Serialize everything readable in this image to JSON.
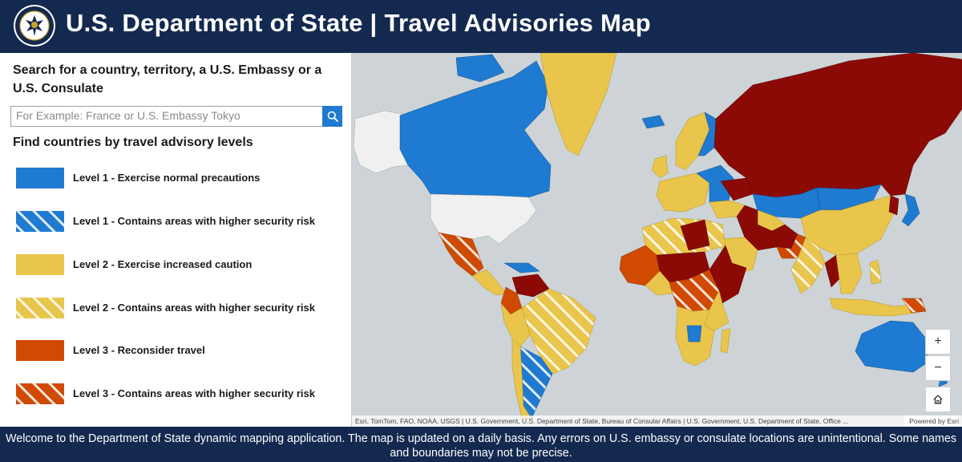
{
  "header": {
    "title": "U.S. Department of State | Travel Advisories Map",
    "seal_icon": "department-of-state-seal"
  },
  "search": {
    "heading": "Search for a country, territory, a U.S. Embassy or a U.S. Consulate",
    "placeholder": "For Example: France or U.S. Embassy Tokyo",
    "button_icon": "search-icon"
  },
  "levels": {
    "heading": "Find countries by travel advisory levels",
    "items": [
      {
        "label": "Level 1 - Exercise normal precautions",
        "color": "#1f7ad1",
        "pattern": "solid"
      },
      {
        "label": "Level 1 - Contains areas with higher security risk",
        "color": "#1f7ad1",
        "pattern": "hatched"
      },
      {
        "label": "Level 2 - Exercise increased caution",
        "color": "#e9c54b",
        "pattern": "solid"
      },
      {
        "label": "Level 2 - Contains areas with higher security risk",
        "color": "#e9c54b",
        "pattern": "hatched"
      },
      {
        "label": "Level 3 - Reconsider travel",
        "color": "#d04a02",
        "pattern": "solid"
      },
      {
        "label": "Level 3 - Contains areas with higher security risk",
        "color": "#d04a02",
        "pattern": "hatched"
      }
    ]
  },
  "map": {
    "attribution": "Esri, TomTom, FAO, NOAA, USGS | U.S. Government, U.S. Department of State, Bureau of Consular Affairs | U.S. Government, U.S. Department of State, Office ...",
    "powered_by": "Powered by Esri",
    "zoom_in": "+",
    "zoom_out": "−",
    "home_icon": "home-icon",
    "colors": {
      "ocean": "#cdd3d6",
      "level1": "#1f7ad1",
      "level2": "#e9c54b",
      "level3": "#d04a02",
      "level4": "#8b0a06",
      "no_advisory": "#f0f0f0"
    }
  },
  "footer": {
    "text": "Welcome to the Department of State dynamic mapping application. The map is updated on a daily basis.  Any errors on U.S. embassy or consulate locations are unintentional. Some names and boundaries may not be precise."
  }
}
